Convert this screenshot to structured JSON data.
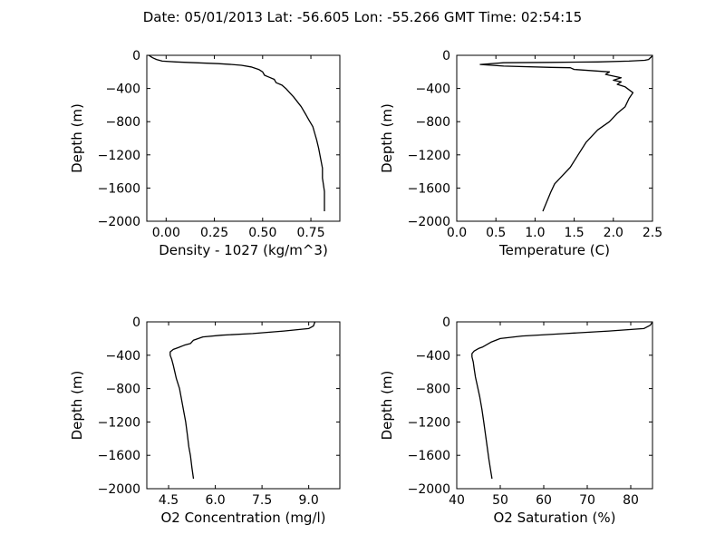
{
  "figure": {
    "title": "Date: 05/01/2013  Lat:  -56.605 Lon:  -55.266  GMT Time: 02:54:15"
  },
  "chart_data": [
    {
      "type": "line",
      "xlabel": "Density - 1027 (kg/m^3)",
      "ylabel": "Depth (m)",
      "xlim": [
        -0.1,
        0.9
      ],
      "ylim": [
        -2000,
        0
      ],
      "xticks": [
        0.0,
        0.25,
        0.5,
        0.75
      ],
      "xtick_labels": [
        "0.00",
        "0.25",
        "0.50",
        "0.75"
      ],
      "yticks": [
        0,
        -400,
        -800,
        -1200,
        -1600,
        -2000
      ],
      "ytick_labels": [
        "0",
        "−400",
        "−800",
        "−1200",
        "−1600",
        "−2000"
      ],
      "grid": false,
      "series": [
        {
          "x": [
            -0.09,
            -0.07,
            -0.05,
            -0.02,
            0.05,
            0.15,
            0.27,
            0.34,
            0.39,
            0.44,
            0.48,
            0.5,
            0.51,
            0.53,
            0.56,
            0.57,
            0.6,
            0.62,
            0.64,
            0.66,
            0.68,
            0.7,
            0.72,
            0.74,
            0.76,
            0.77,
            0.78,
            0.79,
            0.8,
            0.81,
            0.81,
            0.82,
            0.82
          ],
          "y": [
            0,
            -30,
            -50,
            -70,
            -80,
            -90,
            -100,
            -110,
            -120,
            -140,
            -170,
            -200,
            -240,
            -260,
            -290,
            -330,
            -360,
            -400,
            -450,
            -500,
            -560,
            -620,
            -700,
            -780,
            -860,
            -940,
            -1020,
            -1120,
            -1240,
            -1360,
            -1480,
            -1640,
            -1880
          ]
        }
      ]
    },
    {
      "type": "line",
      "xlabel": "Temperature (C)",
      "ylabel": "Depth (m)",
      "xlim": [
        0.0,
        2.5
      ],
      "ylim": [
        -2000,
        0
      ],
      "xticks": [
        0.0,
        0.5,
        1.0,
        1.5,
        2.0,
        2.5
      ],
      "xtick_labels": [
        "0.0",
        "0.5",
        "1.0",
        "1.5",
        "2.0",
        "2.5"
      ],
      "yticks": [
        0,
        -400,
        -800,
        -1200,
        -1600,
        -2000
      ],
      "ytick_labels": [
        "0",
        "−400",
        "−800",
        "−1200",
        "−1600",
        "−2000"
      ],
      "grid": false,
      "series": [
        {
          "x": [
            2.5,
            2.45,
            2.4,
            2.2,
            1.8,
            1.2,
            0.6,
            0.3,
            0.6,
            1.2,
            1.45,
            1.5,
            1.95,
            1.9,
            1.95,
            2.1,
            2.0,
            2.1,
            2.05,
            2.15,
            2.25,
            2.2,
            2.15,
            2.05,
            1.95,
            1.8,
            1.65,
            1.55,
            1.45,
            1.35,
            1.25,
            1.2,
            1.1
          ],
          "y": [
            -5,
            -50,
            -60,
            -70,
            -80,
            -85,
            -90,
            -110,
            -130,
            -145,
            -150,
            -170,
            -200,
            -230,
            -240,
            -270,
            -300,
            -320,
            -350,
            -380,
            -450,
            -520,
            -620,
            -700,
            -800,
            -900,
            -1050,
            -1200,
            -1350,
            -1450,
            -1550,
            -1650,
            -1880
          ]
        }
      ]
    },
    {
      "type": "line",
      "xlabel": "O2 Concentration (mg/l)",
      "ylabel": "Depth (m)",
      "xlim": [
        3.8,
        10.0
      ],
      "ylim": [
        -2000,
        0
      ],
      "xticks": [
        4.5,
        6.0,
        7.5,
        9.0
      ],
      "xtick_labels": [
        "4.5",
        "6.0",
        "7.5",
        "9.0"
      ],
      "yticks": [
        0,
        -400,
        -800,
        -1200,
        -1600,
        -2000
      ],
      "ytick_labels": [
        "0",
        "−400",
        "−800",
        "−1200",
        "−1600",
        "−2000"
      ],
      "grid": false,
      "series": [
        {
          "x": [
            9.2,
            9.15,
            9.0,
            8.2,
            7.2,
            6.2,
            5.6,
            5.3,
            5.2,
            5.0,
            4.8,
            4.65,
            4.55,
            4.55,
            4.6,
            4.65,
            4.7,
            4.75,
            4.85,
            4.9,
            4.95,
            5.0,
            5.05,
            5.1,
            5.15,
            5.2,
            5.25,
            5.3
          ],
          "y": [
            0,
            -50,
            -80,
            -110,
            -140,
            -160,
            -180,
            -220,
            -260,
            -280,
            -310,
            -330,
            -360,
            -400,
            -450,
            -520,
            -600,
            -680,
            -800,
            -900,
            -1000,
            -1100,
            -1200,
            -1350,
            -1500,
            -1600,
            -1750,
            -1880
          ]
        }
      ]
    },
    {
      "type": "line",
      "xlabel": "O2 Saturation (%)",
      "ylabel": "Depth (m)",
      "xlim": [
        40,
        85
      ],
      "ylim": [
        -2000,
        0
      ],
      "xticks": [
        40,
        50,
        60,
        70,
        80
      ],
      "xtick_labels": [
        "40",
        "50",
        "60",
        "70",
        "80"
      ],
      "yticks": [
        0,
        -400,
        -800,
        -1200,
        -1600,
        -2000
      ],
      "ytick_labels": [
        "0",
        "−400",
        "−800",
        "−1200",
        "−1600",
        "−2000"
      ],
      "grid": false,
      "series": [
        {
          "x": [
            85,
            84.5,
            83,
            75,
            65,
            55,
            50,
            48,
            47,
            46,
            45,
            44,
            43.5,
            43.5,
            43.8,
            44,
            44.3,
            44.8,
            45.3,
            45.8,
            46.2,
            46.6,
            47,
            47.4,
            47.8,
            48.1
          ],
          "y": [
            0,
            -40,
            -80,
            -110,
            -140,
            -170,
            -200,
            -240,
            -270,
            -300,
            -320,
            -350,
            -380,
            -420,
            -480,
            -560,
            -660,
            -780,
            -900,
            -1050,
            -1200,
            -1350,
            -1500,
            -1650,
            -1780,
            -1880
          ]
        }
      ]
    }
  ]
}
